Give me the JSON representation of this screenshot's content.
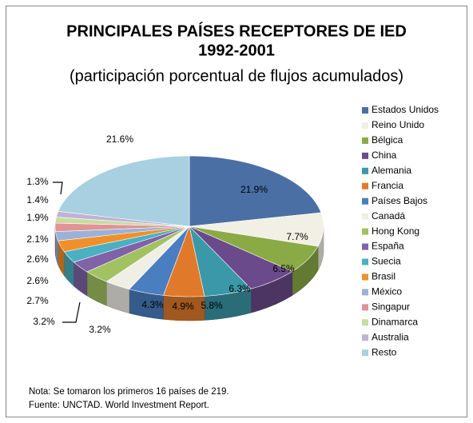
{
  "chart_data": {
    "type": "pie3d",
    "title": "PRINCIPALES PAÍSES RECEPTORES DE IED",
    "subtitle": "1992-2001",
    "subtitle2": "(participación porcentual de flujos acumulados)",
    "categories": [
      "Estados Unidos",
      "Reino Unido",
      "Bélgica",
      "China",
      "Alemania",
      "Francia",
      "Países Bajos",
      "Canadá",
      "Hong Kong",
      "España",
      "Suecia",
      "Brasil",
      "México",
      "Singapur",
      "Dinamarca",
      "Australia",
      "Resto"
    ],
    "values": [
      21.9,
      7.7,
      6.5,
      6.3,
      5.8,
      4.9,
      4.3,
      3.2,
      3.2,
      2.7,
      2.6,
      2.6,
      2.1,
      1.9,
      1.4,
      1.3,
      21.6
    ],
    "value_labels": [
      "21.9%",
      "7.7%",
      "6.5%",
      "6.3%",
      "5.8%",
      "4.9%",
      "4.3%",
      "3.2%",
      "3.2%",
      "2.7%",
      "2.6%",
      "2.6%",
      "2.1%",
      "1.9%",
      "1.4%",
      "1.3%",
      "21.6%"
    ],
    "colors": [
      "#4a6fa5",
      "#f2f0e4",
      "#8aaa46",
      "#6a4a8a",
      "#3a98a8",
      "#e07a2a",
      "#4a7ec0",
      "#f0efe6",
      "#a2c262",
      "#8062a8",
      "#4ab0c2",
      "#f0902a",
      "#9ab2d8",
      "#e09494",
      "#c8dca2",
      "#c0b2d6",
      "#a8d0e0"
    ],
    "legend": "right",
    "notes": [
      "Nota: Se tomaron los primeros 16 países de 219.",
      "Fuente: UNCTAD. World Investment Report."
    ]
  }
}
